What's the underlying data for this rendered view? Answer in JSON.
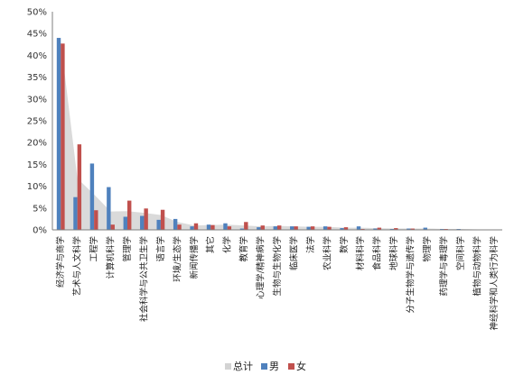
{
  "chart_data": {
    "type": "bar",
    "categories": [
      "经济学与商学",
      "艺术与人文科学",
      "工程学",
      "计算机科学",
      "管理学",
      "社会科学与公共卫生学",
      "语言学",
      "环境/生态学",
      "新闻传播学",
      "其它",
      "化学",
      "教育学",
      "心理学/精神病学",
      "生物与生物化学",
      "临床医学",
      "法学",
      "农业科学",
      "数学",
      "材料科学",
      "食品科学",
      "地球科学",
      "分子生物学与遗传学",
      "物理学",
      "药理学与毒理学",
      "空间科学",
      "植物与动物科学",
      "神经科学和人类行为科学"
    ],
    "series": [
      {
        "name": "总计",
        "values": [
          43.3,
          11.8,
          8.1,
          4.2,
          4.3,
          3.9,
          3.4,
          1.8,
          1.0,
          1.1,
          1.2,
          1.0,
          0.8,
          0.9,
          0.8,
          0.7,
          0.7,
          0.5,
          0.5,
          0.4,
          0.3,
          0.3,
          0.3,
          0.2,
          0.2,
          0.1,
          0.1
        ]
      },
      {
        "name": "男",
        "values": [
          44.0,
          7.5,
          15.2,
          9.8,
          3.0,
          3.2,
          2.3,
          2.5,
          0.8,
          1.2,
          1.5,
          0.3,
          0.6,
          0.8,
          0.8,
          0.7,
          0.8,
          0.4,
          0.8,
          0.3,
          0.2,
          0.3,
          0.5,
          0.2,
          0.2,
          0.1,
          0.1
        ]
      },
      {
        "name": "女",
        "values": [
          42.7,
          19.6,
          4.5,
          1.2,
          6.7,
          4.9,
          4.6,
          1.2,
          1.5,
          1.1,
          0.8,
          1.8,
          1.0,
          1.0,
          0.8,
          0.8,
          0.7,
          0.6,
          0.2,
          0.5,
          0.4,
          0.3,
          0.1,
          0.2,
          0.1,
          0.1,
          0.1
        ]
      }
    ],
    "y_ticks": [
      "0%",
      "5%",
      "10%",
      "15%",
      "20%",
      "25%",
      "30%",
      "35%",
      "40%",
      "45%",
      "50%"
    ],
    "ylim": [
      0,
      50
    ],
    "legend_position": "bottom",
    "colors": {
      "总计": "#d3d3d3",
      "男": "#4f81bd",
      "女": "#c0504d"
    },
    "grid": false
  }
}
